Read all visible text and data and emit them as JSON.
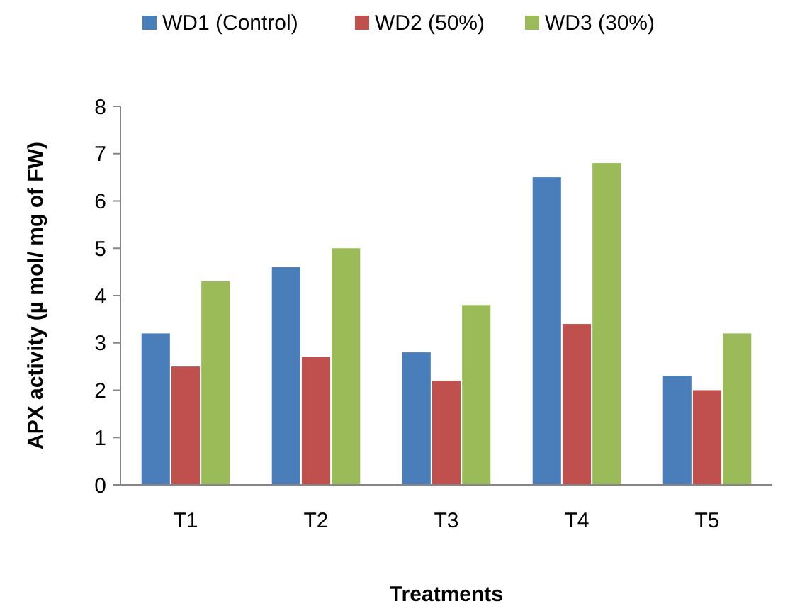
{
  "chart_data": {
    "type": "bar",
    "xlabel": "Treatments",
    "ylabel": "APX activity (µ mol/ mg of FW)",
    "categories": [
      "T1",
      "T2",
      "T3",
      "T4",
      "T5"
    ],
    "series": [
      {
        "name": "WD1 (Control)",
        "color": "#4a7ebb",
        "values": [
          3.2,
          4.6,
          2.8,
          6.5,
          2.3
        ]
      },
      {
        "name": "WD2 (50%)",
        "color": "#c0504d",
        "values": [
          2.5,
          2.7,
          2.2,
          3.4,
          2.0
        ]
      },
      {
        "name": "WD3 (30%)",
        "color": "#9bbb59",
        "values": [
          4.3,
          5.0,
          3.8,
          6.8,
          3.2
        ]
      }
    ],
    "ylim": [
      0,
      8
    ],
    "yticks": [
      0,
      1,
      2,
      3,
      4,
      5,
      6,
      7,
      8
    ],
    "grid": false,
    "legend": "top"
  }
}
